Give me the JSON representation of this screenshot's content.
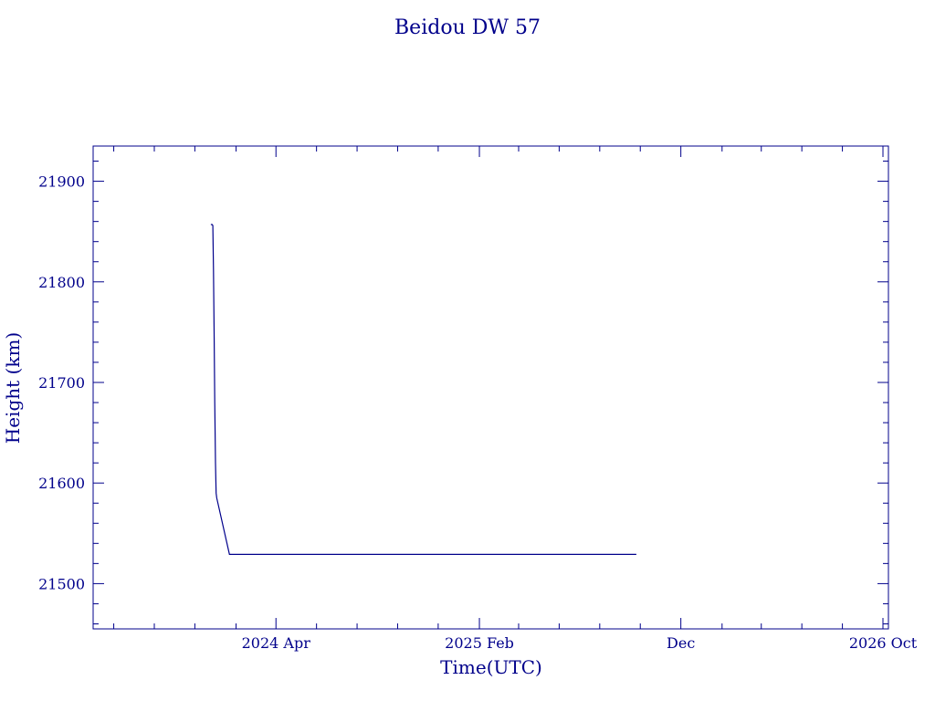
{
  "chart_data": {
    "type": "line",
    "title": "Beidou DW 57",
    "xlabel": "Time(UTC)",
    "ylabel": "Height (km)",
    "ylim": [
      21455,
      21935
    ],
    "yticks": [
      21500,
      21600,
      21700,
      21800,
      21900
    ],
    "xlim": [
      "2023-07-01",
      "2026-10-01"
    ],
    "xticks": [
      {
        "date": "2024-04-01",
        "label": "2024 Apr"
      },
      {
        "date": "2025-02-01",
        "label": "2025 Feb"
      },
      {
        "date": "2025-12-01",
        "label": "Dec"
      },
      {
        "date": "2026-10-01",
        "label": "2026 Oct"
      }
    ],
    "grid": false,
    "color": "#00008b",
    "series": [
      {
        "x": [
          "2023-12-25",
          "2023-12-27",
          "2023-12-28",
          "2023-12-29",
          "2023-12-30",
          "2023-12-31",
          "2024-01-01",
          "2024-01-02",
          "2024-01-03",
          "2024-01-22",
          "2025-09-25"
        ],
        "values": [
          21857,
          21857,
          21856,
          21812,
          21750,
          21680,
          21620,
          21590,
          21585,
          21529,
          21529
        ]
      }
    ]
  }
}
